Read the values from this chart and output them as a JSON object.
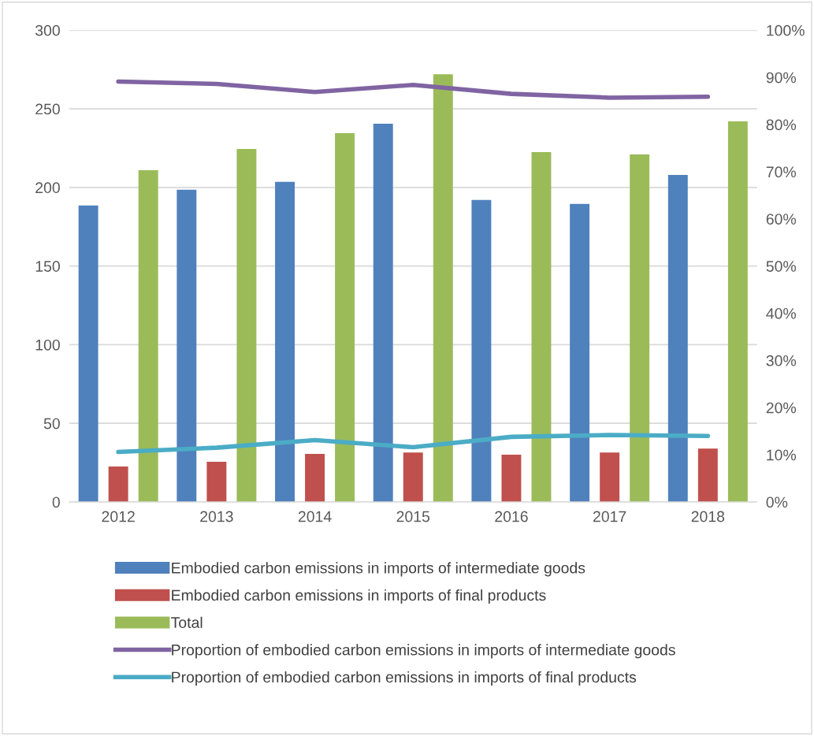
{
  "chart_data": {
    "type": "bar",
    "categories": [
      "2012",
      "2013",
      "2014",
      "2015",
      "2016",
      "2017",
      "2018"
    ],
    "series": [
      {
        "name": "Embodied carbon emissions in imports of intermediate goods",
        "color": "#4f81bd",
        "values": [
          188.5,
          198.5,
          203.5,
          240.5,
          192,
          189.5,
          208
        ]
      },
      {
        "name": "Embodied carbon emissions in imports of final products",
        "color": "#c0504d",
        "values": [
          22.5,
          25.5,
          30.5,
          31.5,
          30,
          31.5,
          34
        ]
      },
      {
        "name": "Total",
        "color": "#9bbb59",
        "values": [
          211,
          224.5,
          234.5,
          272,
          222.5,
          221,
          242
        ]
      },
      {
        "name": "Proportion of embodied carbon emissions in imports of intermediate goods",
        "color": "#8064a2",
        "type": "line",
        "axis": "y2",
        "values": [
          89.1,
          88.6,
          86.9,
          88.4,
          86.5,
          85.7,
          85.9
        ]
      },
      {
        "name": "Proportion of embodied carbon emissions in imports of final products",
        "color": "#4bacc6",
        "type": "line",
        "axis": "y2",
        "values": [
          10.6,
          11.5,
          13.1,
          11.6,
          13.8,
          14.2,
          14.0
        ]
      }
    ],
    "ylim": [
      0,
      300
    ],
    "yticks": [
      0,
      50,
      100,
      150,
      200,
      250,
      300
    ],
    "y2lim": [
      0,
      100
    ],
    "y2ticks": [
      {
        "value": 0,
        "label": "0%"
      },
      {
        "value": 10,
        "label": "10%"
      },
      {
        "value": 20,
        "label": "20%"
      },
      {
        "value": 30,
        "label": "30%"
      },
      {
        "value": 40,
        "label": "40%"
      },
      {
        "value": 50,
        "label": "50%"
      },
      {
        "value": 60,
        "label": "60%"
      },
      {
        "value": 70,
        "label": "70%"
      },
      {
        "value": 80,
        "label": "80%"
      },
      {
        "value": 90,
        "label": "90%"
      },
      {
        "value": 100,
        "label": "100%"
      }
    ],
    "grid": "y",
    "legend": "bottom",
    "marker": "none",
    "line_style": "solid"
  }
}
